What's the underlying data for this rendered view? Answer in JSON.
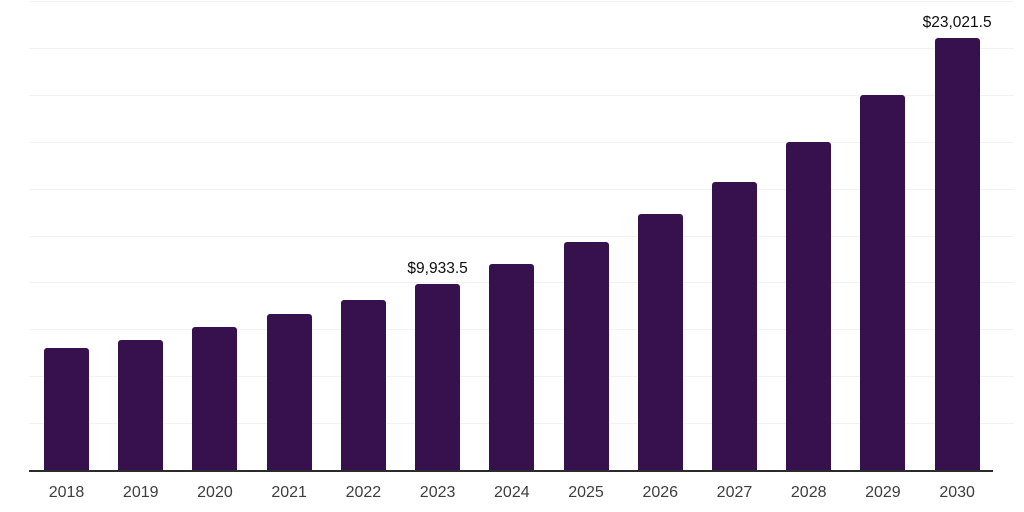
{
  "chart_data": {
    "type": "bar",
    "title": "",
    "xlabel": "",
    "ylabel": "",
    "categories": [
      "2018",
      "2019",
      "2020",
      "2021",
      "2022",
      "2023",
      "2024",
      "2025",
      "2026",
      "2027",
      "2028",
      "2029",
      "2030"
    ],
    "values": [
      6480,
      6925,
      7630,
      8290,
      9050,
      9933.5,
      10955,
      12130,
      13620,
      15360,
      17490,
      19975,
      23021.5
    ],
    "annotations": [
      {
        "index": 5,
        "label": "$9,933.5"
      },
      {
        "index": 12,
        "label": "$23,021.5"
      }
    ],
    "ylim": [
      0,
      25000
    ],
    "gridline_interval": 2500,
    "grid": true,
    "legend": "none",
    "y_axis_labels_visible": false,
    "bar_color": "#36114E",
    "gridline_color": "#f2f2f2",
    "axis_line_color": "#2b2b2b",
    "tick_label_color": "#3d3d3d",
    "data_label_color": "#0d0d0d",
    "background_color": "#ffffff"
  }
}
